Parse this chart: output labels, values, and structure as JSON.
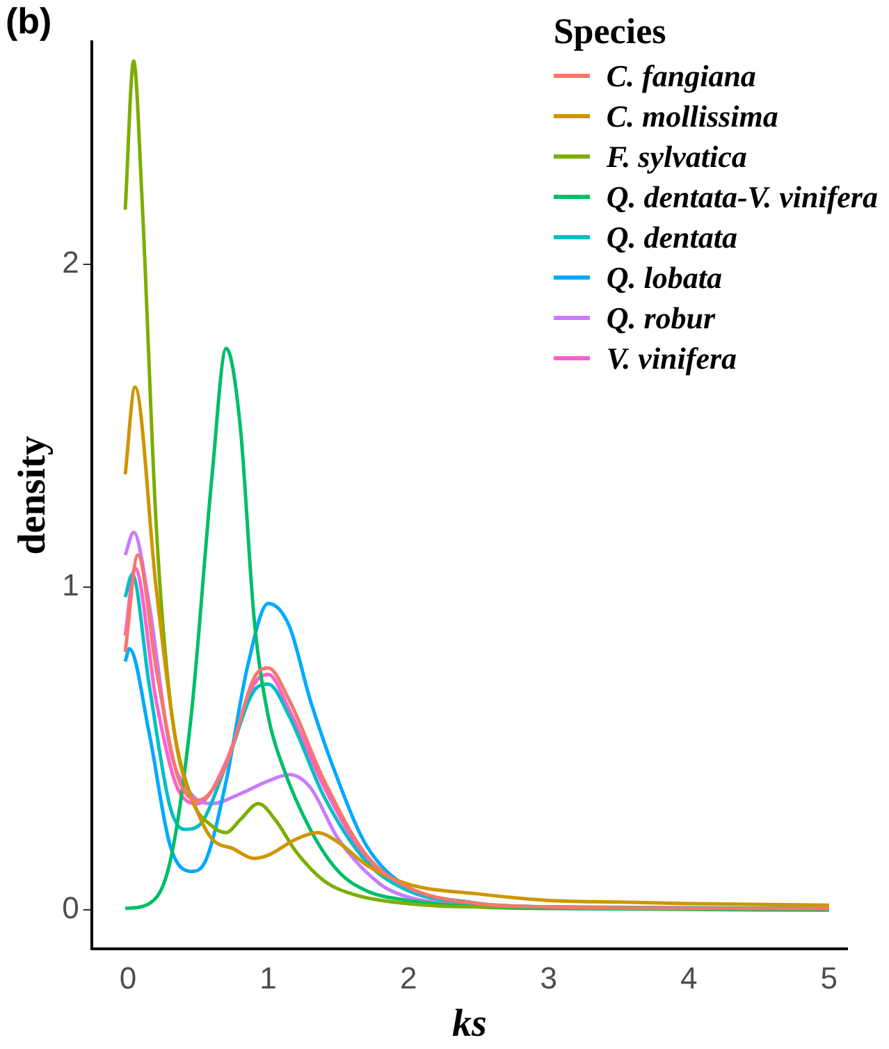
{
  "chart_data": {
    "type": "line",
    "xlabel": "ks",
    "ylabel": "density",
    "legend_title": "Species",
    "legend": "top right",
    "grid": false,
    "annotations": [
      "(b)"
    ],
    "xlim": [
      -0.26,
      5.13
    ],
    "ylim": [
      -0.12,
      2.69
    ],
    "xticks": [
      0,
      1,
      2,
      3,
      4,
      5
    ],
    "yticks": [
      0,
      1,
      2
    ],
    "series": [
      {
        "name": "C. fangiana",
        "color": "#f8766d",
        "x": [
          -0.02,
          0.07,
          0.2,
          0.35,
          0.5,
          0.7,
          0.9,
          1.0,
          1.15,
          1.4,
          1.7,
          2.0,
          2.5,
          3,
          4,
          5
        ],
        "values": [
          0.8,
          1.1,
          0.75,
          0.42,
          0.34,
          0.45,
          0.72,
          0.75,
          0.65,
          0.4,
          0.17,
          0.07,
          0.02,
          0.01,
          0.005,
          0.005
        ]
      },
      {
        "name": "C. mollissima",
        "color": "#cd9600",
        "x": [
          -0.02,
          0.05,
          0.2,
          0.35,
          0.5,
          0.6,
          0.75,
          0.9,
          1.0,
          1.2,
          1.35,
          1.5,
          1.7,
          2.0,
          2.5,
          3,
          3.5,
          4,
          5
        ],
        "values": [
          1.35,
          1.62,
          1.0,
          0.5,
          0.3,
          0.22,
          0.19,
          0.16,
          0.17,
          0.22,
          0.24,
          0.21,
          0.14,
          0.08,
          0.05,
          0.03,
          0.025,
          0.02,
          0.015
        ]
      },
      {
        "name": "F. sylvatica",
        "color": "#7cae00",
        "x": [
          -0.02,
          0.04,
          0.1,
          0.2,
          0.3,
          0.45,
          0.6,
          0.7,
          0.8,
          0.93,
          1.05,
          1.2,
          1.4,
          1.6,
          2.0,
          2.5,
          3,
          4,
          5
        ],
        "values": [
          2.17,
          2.63,
          2.2,
          1.2,
          0.65,
          0.35,
          0.26,
          0.24,
          0.28,
          0.33,
          0.28,
          0.18,
          0.09,
          0.05,
          0.02,
          0.01,
          0.01,
          0.005,
          0.005
        ]
      },
      {
        "name": "Q. dentata-V. vinifera",
        "color": "#00be67",
        "x": [
          -0.02,
          0.15,
          0.3,
          0.45,
          0.6,
          0.7,
          0.8,
          0.9,
          1.0,
          1.1,
          1.3,
          1.5,
          1.7,
          2.0,
          2.5,
          3,
          5
        ],
        "values": [
          0.005,
          0.02,
          0.15,
          0.6,
          1.35,
          1.74,
          1.5,
          0.9,
          0.6,
          0.45,
          0.25,
          0.12,
          0.06,
          0.03,
          0.01,
          0.005,
          0
        ]
      },
      {
        "name": "Q. dentata",
        "color": "#00bfc4",
        "x": [
          -0.02,
          0.03,
          0.15,
          0.3,
          0.4,
          0.5,
          0.7,
          0.9,
          1.0,
          1.15,
          1.4,
          1.7,
          2.0,
          2.5,
          3,
          5
        ],
        "values": [
          0.97,
          1.04,
          0.7,
          0.32,
          0.25,
          0.26,
          0.45,
          0.68,
          0.7,
          0.6,
          0.35,
          0.15,
          0.06,
          0.02,
          0.01,
          0.005
        ]
      },
      {
        "name": "Q. lobata",
        "color": "#00a9ff",
        "x": [
          -0.02,
          0.01,
          0.15,
          0.3,
          0.45,
          0.55,
          0.7,
          0.85,
          1.0,
          1.15,
          1.3,
          1.5,
          1.7,
          2.0,
          2.5
        ],
        "values": [
          0.77,
          0.81,
          0.55,
          0.2,
          0.12,
          0.15,
          0.4,
          0.75,
          0.95,
          0.88,
          0.65,
          0.4,
          0.2,
          0.07,
          0.02
        ]
      },
      {
        "name": "Q. robur",
        "color": "#c77cff",
        "x": [
          -0.02,
          0.04,
          0.15,
          0.3,
          0.45,
          0.6,
          0.8,
          1.0,
          1.15,
          1.3,
          1.5,
          1.8,
          2.0,
          2.5,
          3,
          5
        ],
        "values": [
          1.1,
          1.17,
          0.95,
          0.5,
          0.36,
          0.33,
          0.36,
          0.4,
          0.42,
          0.38,
          0.22,
          0.08,
          0.04,
          0.015,
          0.01,
          0.005
        ]
      },
      {
        "name": "V. vinifera",
        "color": "#ff61cc",
        "x": [
          -0.02,
          0.05,
          0.2,
          0.35,
          0.5,
          0.7,
          0.9,
          1.0,
          1.15,
          1.4,
          1.7,
          2.0,
          2.5
        ],
        "values": [
          0.85,
          1.06,
          0.65,
          0.38,
          0.33,
          0.46,
          0.7,
          0.73,
          0.62,
          0.38,
          0.16,
          0.06,
          0.02
        ]
      }
    ]
  }
}
